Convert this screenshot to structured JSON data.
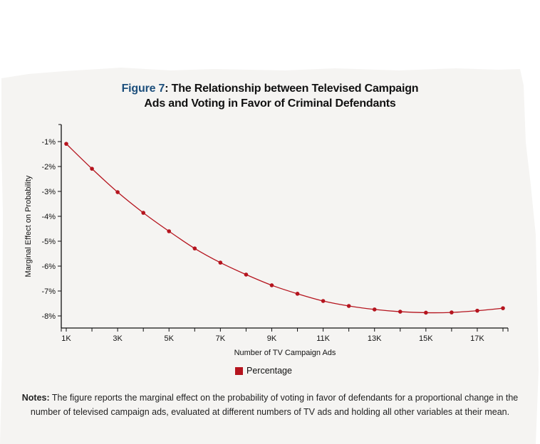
{
  "colors": {
    "series": "#b5141e",
    "figure_label": "#1d4f7c",
    "paper": "#f5f4f2"
  },
  "title": {
    "figure_label": "Figure 7",
    "separator": ":",
    "line1": " The Relationship between Televised Campaign",
    "line2": "Ads and Voting in Favor of Criminal Defendants"
  },
  "chart_data": {
    "type": "line",
    "title": "Figure 7: The Relationship between Televised Campaign Ads and Voting in Favor of Criminal Defendants",
    "xlabel": "Number of TV Campaign Ads",
    "ylabel": "Marginal Effect on Probability",
    "xlim": [
      0.75,
      18.1
    ],
    "ylim": [
      -8.5,
      -0.3
    ],
    "x_ticks": [
      1,
      3,
      5,
      7,
      9,
      11,
      13,
      15,
      17
    ],
    "x_tick_labels": [
      "1K",
      "3K",
      "5K",
      "7K",
      "9K",
      "11K",
      "13K",
      "15K",
      "17K"
    ],
    "y_ticks": [
      -1,
      -2,
      -3,
      -4,
      -5,
      -6,
      -7,
      -8
    ],
    "y_tick_labels": [
      "-1%",
      "-2%",
      "-3%",
      "-4%",
      "-5%",
      "-6%",
      "-7%",
      "-8%"
    ],
    "grid": false,
    "legend": "bottom",
    "series": [
      {
        "name": "Percentage",
        "x": [
          1,
          2,
          3,
          4,
          5,
          6,
          7,
          8,
          9,
          10,
          11,
          12,
          13,
          14,
          15,
          16,
          17,
          18
        ],
        "values": [
          -1.09,
          -2.09,
          -3.03,
          -3.86,
          -4.6,
          -5.29,
          -5.86,
          -6.34,
          -6.77,
          -7.11,
          -7.4,
          -7.6,
          -7.74,
          -7.83,
          -7.87,
          -7.86,
          -7.79,
          -7.69
        ]
      }
    ]
  },
  "notes": {
    "label": "Notes:",
    "text": " The figure reports the marginal effect on the probability of voting in favor of defendants for a proportional change in the number of televised campaign ads, evaluated at different numbers of TV ads and holding all other variables at their mean."
  }
}
